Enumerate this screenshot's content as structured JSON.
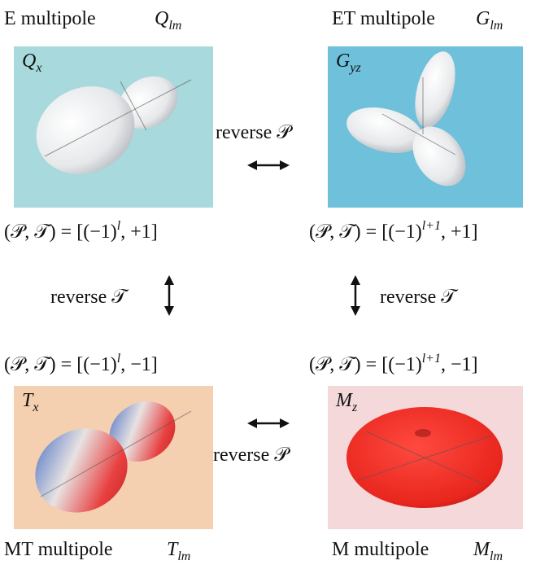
{
  "panels": [
    {
      "name": "E multipole",
      "symbol": "Q",
      "subscript": "lm",
      "inset_symbol": "Q",
      "inset_subscript": "x",
      "parity": "(𝒫, 𝒯) = [(−1)",
      "parity_exponent": "l",
      "parity_end": ", +1]"
    },
    {
      "name": "ET multipole",
      "symbol": "G",
      "subscript": "lm",
      "inset_symbol": "G",
      "inset_subscript": "yz",
      "parity": "(𝒫, 𝒯) = [(−1)",
      "parity_exponent": "l+1",
      "parity_end": ", +1]"
    },
    {
      "name": "MT multipole",
      "symbol": "T",
      "subscript": "lm",
      "inset_symbol": "T",
      "inset_subscript": "x",
      "parity": "(𝒫, 𝒯) = [(−1)",
      "parity_exponent": "l",
      "parity_end": ", −1]"
    },
    {
      "name": "M multipole",
      "symbol": "M",
      "subscript": "lm",
      "inset_symbol": "M",
      "inset_subscript": "z",
      "parity": "(𝒫, 𝒯) = [(−1)",
      "parity_exponent": "l+1",
      "parity_end": ", −1]"
    }
  ],
  "arrows": {
    "top": "reverse 𝒫",
    "bottom": "reverse 𝒫",
    "left": "reverse 𝒯",
    "right": "reverse 𝒯"
  }
}
